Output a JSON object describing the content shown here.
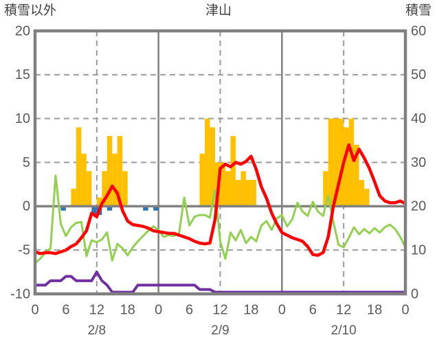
{
  "header": {
    "left_axis_title": "積雪以外",
    "chart_title": "津山",
    "right_axis_title": "積雪"
  },
  "axes": {
    "left_ticks": [
      "20",
      "15",
      "10",
      "5",
      "0",
      "-5",
      "-10"
    ],
    "left_tick_values": [
      20,
      15,
      10,
      5,
      0,
      -5,
      -10
    ],
    "right_ticks": [
      "60",
      "50",
      "40",
      "30",
      "20",
      "10",
      "0"
    ],
    "hour_tick_hours": [
      0,
      6,
      12,
      18,
      24,
      30,
      36,
      42,
      48,
      54,
      60,
      66,
      72
    ],
    "hour_tick_labels": [
      "0",
      "6",
      "12",
      "18",
      "0",
      "6",
      "12",
      "18",
      "0",
      "6",
      "12",
      "18",
      "0"
    ],
    "day_labels": [
      {
        "label": "2/8",
        "hour": 12
      },
      {
        "label": "2/9",
        "hour": 36
      },
      {
        "label": "2/10",
        "hour": 60
      }
    ]
  },
  "colors": {
    "border": "#808080",
    "grid_dashed": "#9a9a9a",
    "zero_line": "#808080",
    "orange_bars": "#FFC000",
    "blue_bars": "#2E75B6",
    "red_line": "#FF0000",
    "green_line": "#92D050",
    "purple_line": "#7030A0",
    "tick_text": "#595959",
    "title_text": "#3f3f3f"
  },
  "chart_data": {
    "type": "bar",
    "subtype": "combo bar+line, dual axis",
    "title": "津山",
    "x_axis": "hours 0-24 over three days",
    "days": [
      "2/8",
      "2/9",
      "2/10"
    ],
    "left_axis": {
      "label": "積雪以外",
      "range": [
        -10,
        20
      ],
      "dashed_gridlines": [
        15,
        10,
        5,
        -5
      ],
      "solid_zero_line": 0
    },
    "right_axis": {
      "label": "積雪",
      "range": [
        0,
        60
      ]
    },
    "vertical_gridlines": {
      "dashed_at_hours": [
        12,
        36,
        60
      ],
      "solid_at_hours": [
        24,
        48
      ]
    },
    "series": [
      {
        "name": "orange_bars",
        "type": "bar",
        "axis": "left",
        "color": "#FFC000",
        "values": [
          0,
          0,
          0,
          0,
          0,
          0,
          0,
          2,
          9,
          6,
          4,
          0,
          1,
          4,
          8,
          6,
          8,
          4,
          0,
          0,
          0,
          0,
          0,
          0,
          0,
          0,
          0,
          0,
          0,
          0,
          0,
          0,
          6,
          10,
          9,
          5,
          5,
          4,
          8,
          3,
          4,
          3,
          3,
          0,
          0,
          0,
          0,
          0,
          0,
          0,
          0,
          0,
          0,
          0,
          0,
          0,
          4,
          10,
          10,
          10,
          9,
          10,
          7,
          3,
          2,
          0,
          0,
          0,
          0,
          0,
          0,
          0
        ]
      },
      {
        "name": "blue_bars",
        "type": "bar",
        "axis": "left",
        "direction": "down",
        "color": "#2E75B6",
        "values": [
          0,
          0,
          0,
          0,
          0,
          0.5,
          0,
          0,
          0,
          0,
          0,
          1,
          1,
          0,
          0.5,
          0,
          0,
          0,
          0,
          0,
          0,
          0.5,
          0,
          0.5,
          0,
          0,
          0,
          0,
          0,
          0,
          0,
          0,
          0,
          0,
          0,
          0,
          0,
          0,
          0,
          0,
          0,
          0,
          0,
          0,
          0,
          0,
          0,
          0,
          0,
          0,
          0,
          0,
          0,
          0,
          0,
          0,
          0,
          0,
          0,
          0,
          0,
          0,
          0,
          0,
          0,
          0,
          0,
          0,
          0,
          0,
          0,
          0
        ]
      },
      {
        "name": "red_line",
        "type": "line",
        "axis": "left",
        "color": "#FF0000",
        "values": [
          -5.2,
          -5.4,
          -5.3,
          -5.3,
          -5.4,
          -5.2,
          -5.0,
          -4.6,
          -4.3,
          -3.6,
          -2.8,
          -0.8,
          -1.2,
          0.3,
          1.2,
          2.3,
          1.5,
          -0.5,
          -1.7,
          -2.1,
          -2.2,
          -2.3,
          -2.5,
          -2.8,
          -2.9,
          -3.0,
          -3.1,
          -3.1,
          -3.3,
          -3.5,
          -3.7,
          -4.0,
          -4.2,
          -4.3,
          -4.2,
          -1.5,
          4.3,
          4.8,
          4.5,
          5.0,
          4.8,
          5.1,
          5.7,
          4.2,
          2.2,
          0.9,
          -0.8,
          -2.0,
          -3.0,
          -3.3,
          -3.6,
          -3.8,
          -4.0,
          -4.6,
          -5.5,
          -5.6,
          -5.3,
          -3.5,
          0.0,
          2.5,
          5.0,
          7.0,
          5.2,
          6.5,
          5.5,
          4.3,
          2.8,
          1.2,
          0.6,
          0.4,
          0.4,
          0.6,
          0.3
        ]
      },
      {
        "name": "green_line",
        "type": "line",
        "axis": "left",
        "color": "#92D050",
        "values": [
          -6.5,
          -6.0,
          -5.3,
          -4.8,
          3.5,
          -2.0,
          -3.4,
          -2.4,
          -1.9,
          -1.8,
          -5.7,
          -3.9,
          -4.1,
          -3.8,
          -3.0,
          -6.2,
          -4.3,
          -4.8,
          -5.6,
          -4.7,
          -4.0,
          -3.4,
          -2.8,
          -2.3,
          -2.7,
          -3.5,
          -3.3,
          -3.4,
          -3.1,
          1.0,
          -2.2,
          -1.2,
          -1.0,
          -1.0,
          -1.3,
          1.9,
          -4.0,
          -6.0,
          -3.0,
          -3.9,
          -2.7,
          -4.2,
          -3.5,
          -4.0,
          -2.2,
          -1.7,
          -2.7,
          -1.4,
          -1.0,
          -2.3,
          -1.5,
          0.4,
          -0.6,
          -1.1,
          0.5,
          -0.6,
          -1.1,
          1.2,
          -1.8,
          -4.4,
          -4.7,
          -3.6,
          -2.4,
          -3.2,
          -2.6,
          -3.1,
          -2.5,
          -3.0,
          -2.4,
          -2.1,
          -2.6,
          -3.5,
          -4.7
        ]
      },
      {
        "name": "purple_line_snow_depth",
        "type": "line",
        "axis": "right",
        "unit": "cm",
        "color": "#7030A0",
        "values": [
          2,
          2,
          2,
          3,
          3,
          3,
          4,
          4,
          3,
          3,
          3,
          3,
          5,
          3,
          2,
          0,
          0,
          0,
          0,
          0,
          2,
          2,
          2,
          2,
          2,
          2,
          2,
          2,
          2,
          2,
          2,
          2,
          1,
          1,
          1,
          0,
          0,
          0,
          0,
          0,
          0,
          0,
          0,
          0,
          0,
          0,
          0,
          0,
          0,
          0,
          0,
          0,
          0,
          0,
          0,
          0,
          0,
          0,
          0,
          0,
          0,
          0,
          0,
          0,
          0,
          0,
          0,
          0,
          0,
          0,
          0,
          0,
          0
        ]
      }
    ]
  }
}
